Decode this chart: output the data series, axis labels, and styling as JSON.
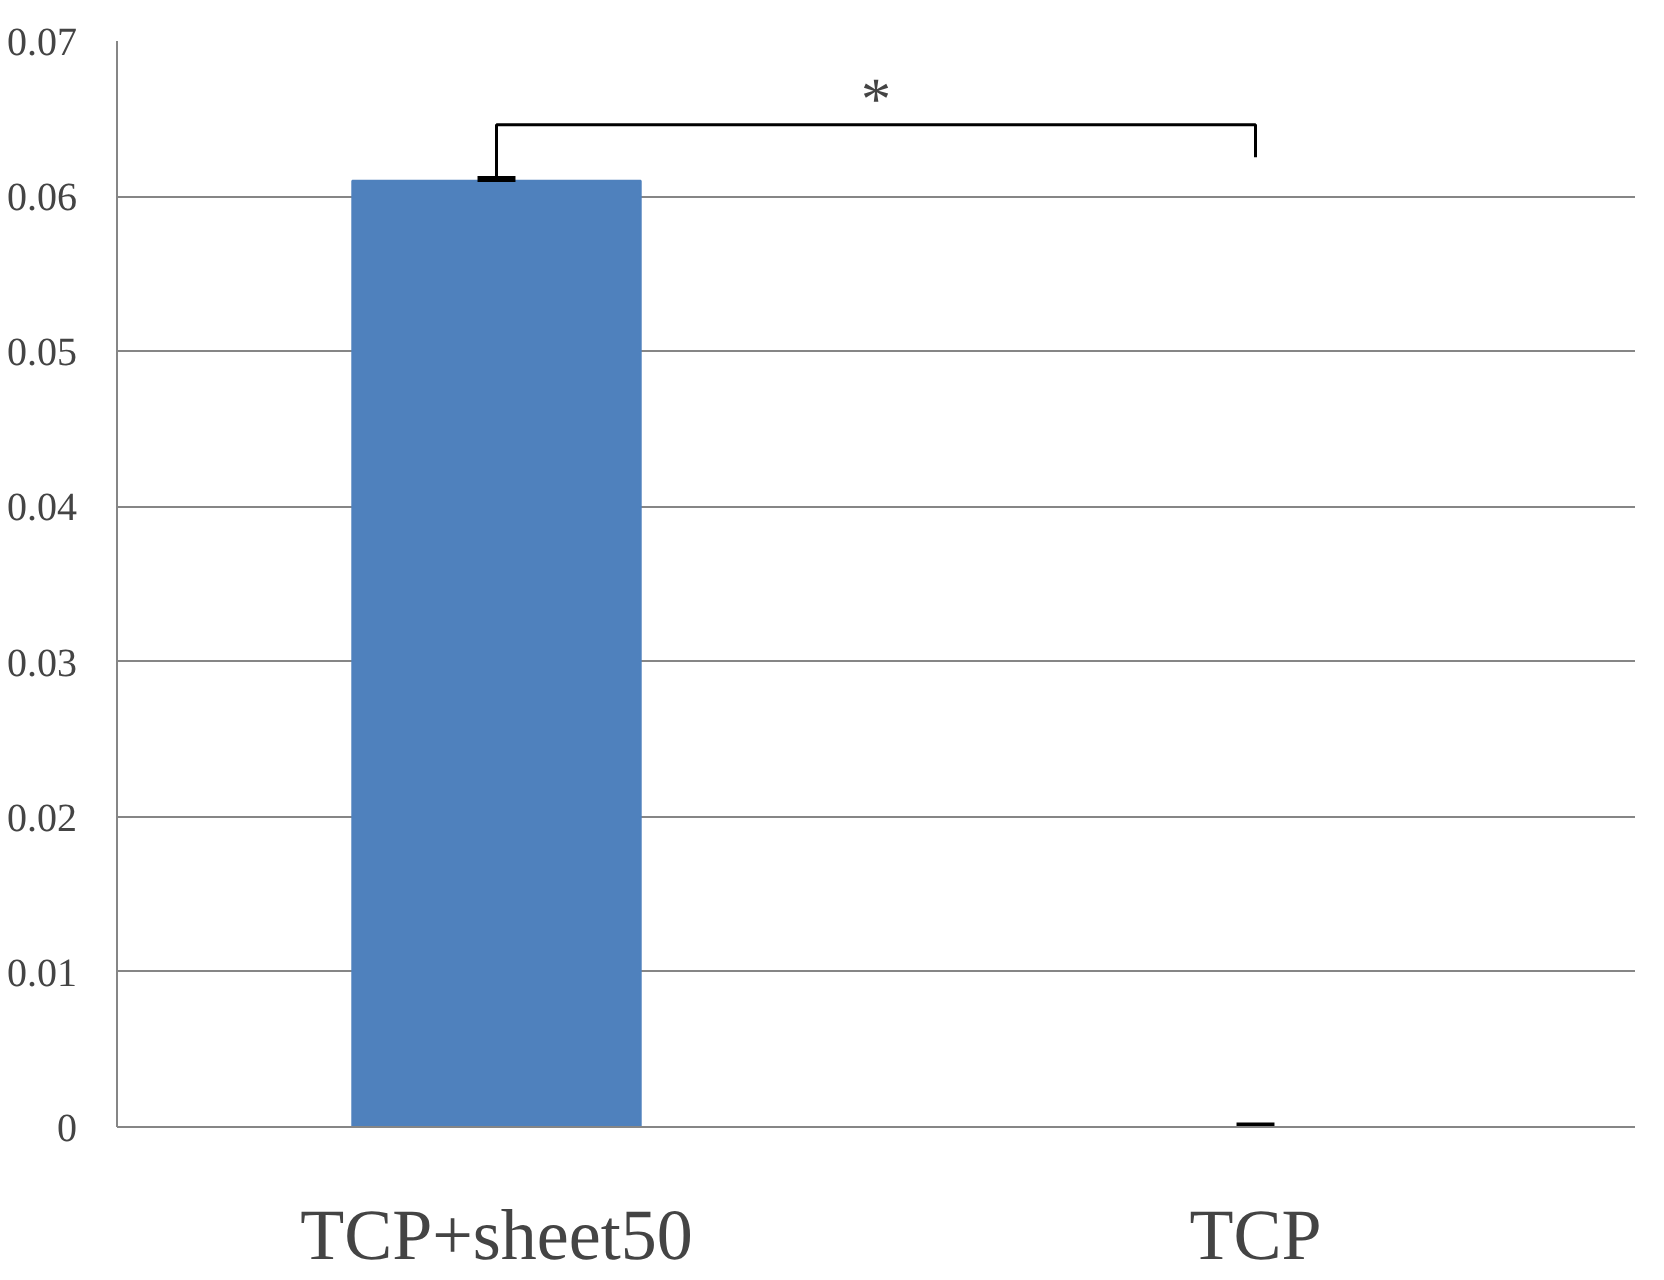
{
  "chart_data": {
    "type": "bar",
    "categories": [
      "TCP+sheet50",
      "TCP"
    ],
    "values": [
      0.061,
      0
    ],
    "color": "#4f81bd",
    "errors": [
      [
        0.061,
        0.0611
      ],
      [
        0,
        0.0001
      ]
    ],
    "ylim": [
      0,
      0.07
    ],
    "yticks": [
      0,
      0.01,
      0.02,
      0.03,
      0.04,
      0.05,
      0.06,
      0.07
    ],
    "grid": "y",
    "annotations": [
      "*"
    ]
  }
}
